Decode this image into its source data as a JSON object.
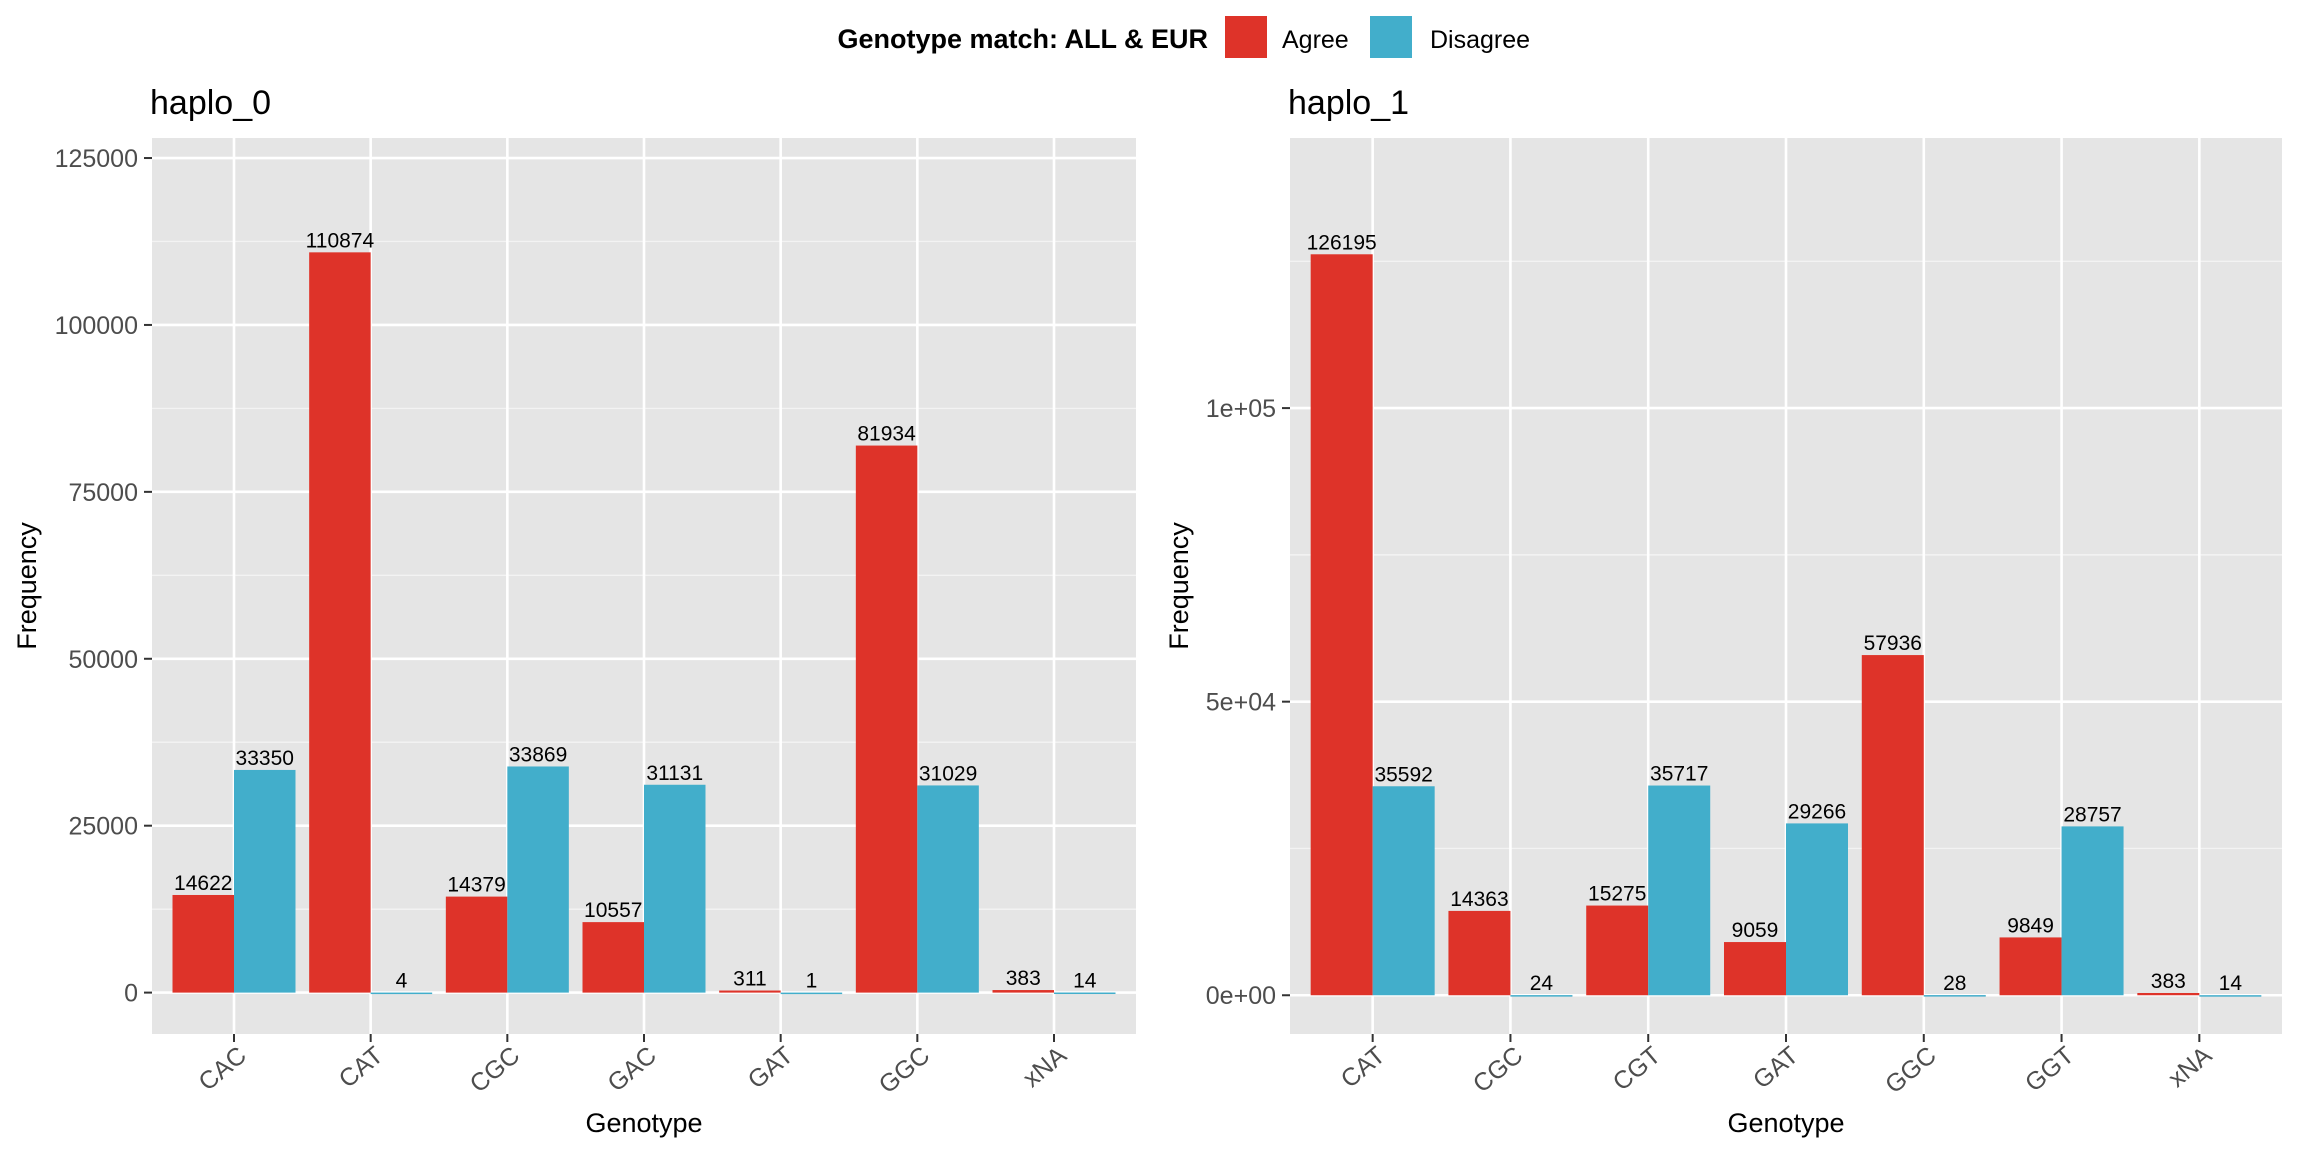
{
  "legend": {
    "title": "Genotype match: ALL & EUR",
    "items": [
      {
        "label": "Agree",
        "color": "#DE3329"
      },
      {
        "label": "Disagree",
        "color": "#42AECB"
      }
    ]
  },
  "chart_data": [
    {
      "type": "bar",
      "title": "haplo_0",
      "xlabel": "Genotype",
      "ylabel": "Frequency",
      "categories": [
        "CAC",
        "CAT",
        "CGC",
        "GAC",
        "GAT",
        "GGC",
        "xNA"
      ],
      "series": [
        {
          "name": "Agree",
          "values": [
            14622,
            110874,
            14379,
            10557,
            311,
            81934,
            383
          ]
        },
        {
          "name": "Disagree",
          "values": [
            33350,
            4,
            33869,
            31131,
            1,
            31029,
            14
          ]
        }
      ],
      "ylim": [
        -6200,
        128000
      ],
      "yticks": [
        0,
        25000,
        50000,
        75000,
        100000,
        125000
      ],
      "ytick_labels": [
        "0",
        "25000",
        "50000",
        "75000",
        "100000",
        "125000"
      ],
      "grid": true,
      "legend_position": "top"
    },
    {
      "type": "bar",
      "title": "haplo_1",
      "xlabel": "Genotype",
      "ylabel": "Frequency",
      "categories": [
        "CAT",
        "CGC",
        "CGT",
        "GAT",
        "GGC",
        "GGT",
        "xNA"
      ],
      "series": [
        {
          "name": "Agree",
          "values": [
            126195,
            14363,
            15275,
            9059,
            57936,
            9849,
            383
          ]
        },
        {
          "name": "Disagree",
          "values": [
            35592,
            24,
            35717,
            29266,
            28,
            28757,
            14
          ]
        }
      ],
      "ylim": [
        -6600,
        146000
      ],
      "yticks": [
        0,
        50000,
        100000
      ],
      "ytick_labels": [
        "0e+00",
        "5e+04",
        "1e+05"
      ],
      "grid": true,
      "legend_position": "top"
    }
  ]
}
